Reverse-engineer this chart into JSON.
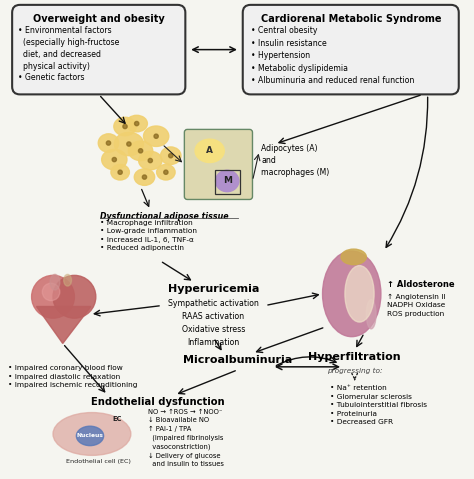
{
  "bg_color": "#f5f5f0",
  "box1_title": "Overweight and obesity",
  "box1_item1": "• Environmental factors\n  (especially high-fructose\n  diet, and decreased\n  physical activity)",
  "box1_item2": "• Genetic factors",
  "box2_title": "Cardiorenal Metabolic Syndrome",
  "box2_items": "• Central obesity\n• Insulin resistance\n• Hypertension\n• Metabolic dyslipidemia\n• Albuminuria and reduced renal function",
  "adipocytes_label": "Adipocytes (A)\nand\nmacrophages (M)",
  "dysfunctional_title": "Dysfunctional adipose tissue",
  "dysfunctional_items": "• Macrophage infiltration\n• Low-grade inflammation\n• Increased IL-1, 6, TNF-α\n• Reduced adiponectin",
  "aldosterone_line1": "↑ Aldosterone",
  "aldosterone_rest": "↑ Angiotensin II\nNADPH Oxidase\nROS production",
  "hyperuricemia_title": "Hyperuricemia",
  "hyperuricemia_items": "Sympathetic activation\nRAAS activation\nOxidative stress\nInflammation",
  "heart_items": "• Impaired coronary blood flow\n• Impaired diastolic relaxation\n• Impaired ischemic reconditioning",
  "microalbuminuria": "Microalbuminuria",
  "hyperfiltration": "Hyperfiltration",
  "hyperfiltration_progressing": "progressing to:",
  "hyperfiltration_items": "• Na⁺ retention\n• Glomerular sclerosis\n• Tubulointerstitial fibrosis\n• Proteinuria\n• Decreased GFR",
  "endothelial_title": "Endothelial dysfunction",
  "endothelial_items": "NO → ↑ROS → ↑NOO⁻\n↓ Bioavailable NO\n↑ PAI-1 / TPA\n  (impaired fibrinolysis\n  vasoconstriction)\n↓ Delivery of glucose\n  and insulin to tissues",
  "ec_label": "EC",
  "nucleus_label": "Nucleus",
  "ec_cell_label": "Endothelial cell (EC)"
}
